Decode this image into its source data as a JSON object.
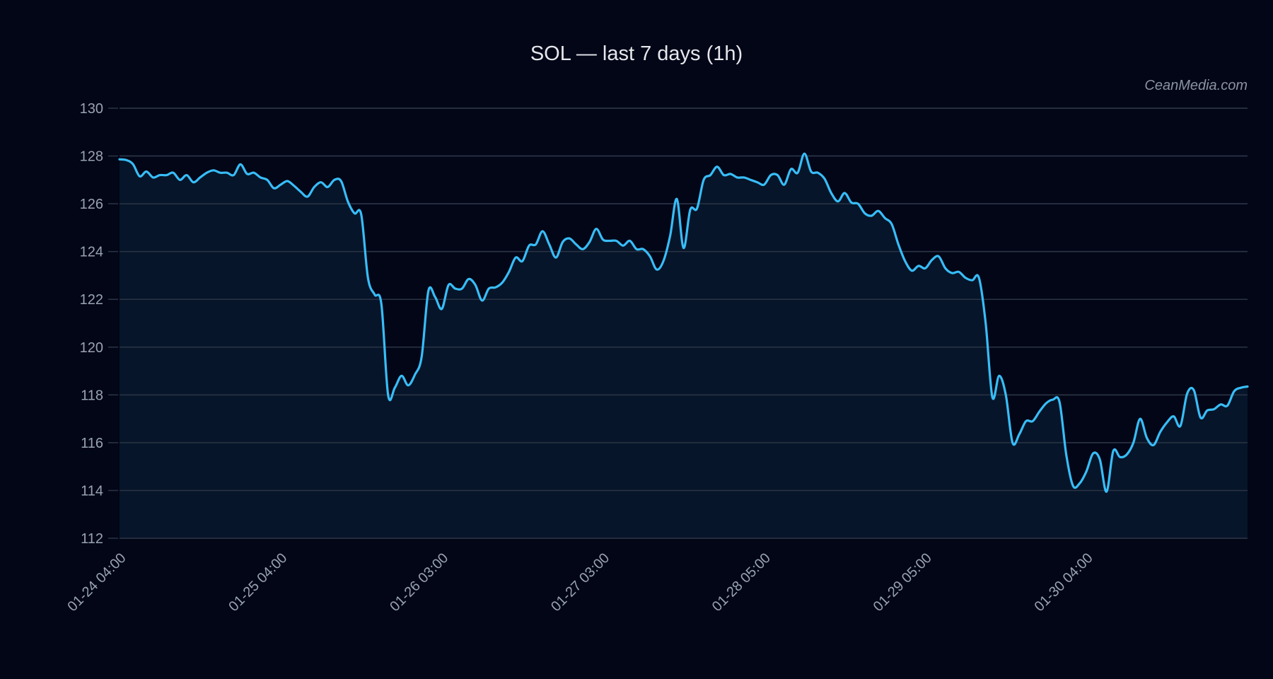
{
  "chart_data": {
    "type": "line",
    "title": "SOL — last 7 days (1h)",
    "watermark": "CeanMedia.com",
    "xlabel": "",
    "ylabel": "",
    "ylim": [
      112,
      130
    ],
    "yticks": [
      112,
      114,
      116,
      118,
      120,
      122,
      124,
      126,
      128,
      130
    ],
    "grid": true,
    "xtick_labels": [
      {
        "index": 0,
        "label": "01-24 04:00"
      },
      {
        "index": 24,
        "label": "01-25 04:00"
      },
      {
        "index": 48,
        "label": "01-26 03:00"
      },
      {
        "index": 72,
        "label": "01-27 03:00"
      },
      {
        "index": 96,
        "label": "01-28 05:00"
      },
      {
        "index": 120,
        "label": "01-29 05:00"
      },
      {
        "index": 144,
        "label": "01-30 04:00"
      }
    ],
    "colors": {
      "line": "#38bdf8",
      "fill": "#061529",
      "background": "#020617",
      "grid": "#2b3445"
    },
    "series": [
      {
        "values": [
          127.86,
          127.83,
          127.66,
          127.15,
          127.35,
          127.1,
          127.2,
          127.2,
          127.3,
          127.0,
          127.2,
          126.9,
          127.1,
          127.3,
          127.4,
          127.3,
          127.3,
          127.2,
          127.65,
          127.25,
          127.3,
          127.1,
          127.0,
          126.65,
          126.8,
          126.95,
          126.75,
          126.5,
          126.3,
          126.7,
          126.9,
          126.7,
          127.0,
          126.95,
          126.1,
          125.6,
          125.55,
          122.9,
          122.2,
          121.8,
          118.0,
          118.3,
          118.8,
          118.4,
          118.85,
          119.6,
          122.35,
          122.1,
          121.6,
          122.6,
          122.45,
          122.45,
          122.85,
          122.6,
          121.95,
          122.45,
          122.5,
          122.7,
          123.15,
          123.75,
          123.6,
          124.25,
          124.3,
          124.85,
          124.3,
          123.75,
          124.4,
          124.55,
          124.3,
          124.1,
          124.4,
          124.95,
          124.5,
          124.45,
          124.45,
          124.25,
          124.45,
          124.1,
          124.1,
          123.8,
          123.25,
          123.6,
          124.65,
          126.2,
          124.15,
          125.75,
          125.8,
          127.0,
          127.2,
          127.55,
          127.2,
          127.25,
          127.1,
          127.1,
          127.0,
          126.9,
          126.8,
          127.2,
          127.2,
          126.8,
          127.45,
          127.3,
          128.1,
          127.35,
          127.3,
          127.05,
          126.45,
          126.1,
          126.45,
          126.05,
          126.0,
          125.6,
          125.5,
          125.7,
          125.4,
          125.15,
          124.3,
          123.6,
          123.2,
          123.4,
          123.3,
          123.65,
          123.8,
          123.3,
          123.1,
          123.15,
          122.9,
          122.8,
          122.9,
          121.0,
          117.9,
          118.8,
          118.0,
          116.0,
          116.35,
          116.9,
          116.9,
          117.3,
          117.65,
          117.8,
          117.7,
          115.5,
          114.2,
          114.3,
          114.8,
          115.55,
          115.3,
          113.95,
          115.65,
          115.4,
          115.5,
          116.0,
          117.0,
          116.2,
          115.9,
          116.45,
          116.85,
          117.1,
          116.7,
          118.05,
          118.2,
          117.05,
          117.35,
          117.4,
          117.6,
          117.55,
          118.15,
          118.3,
          118.35
        ]
      }
    ]
  }
}
